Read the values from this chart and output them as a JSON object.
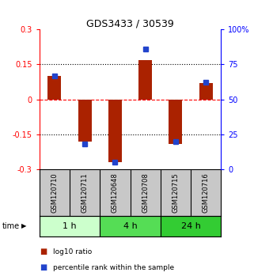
{
  "title": "GDS3433 / 30539",
  "samples": [
    "GSM120710",
    "GSM120711",
    "GSM120648",
    "GSM120708",
    "GSM120715",
    "GSM120716"
  ],
  "groups": [
    {
      "label": "1 h",
      "indices": [
        0,
        1
      ],
      "color": "#ccffcc"
    },
    {
      "label": "4 h",
      "indices": [
        2,
        3
      ],
      "color": "#55dd55"
    },
    {
      "label": "24 h",
      "indices": [
        4,
        5
      ],
      "color": "#33cc33"
    }
  ],
  "log10_ratio": [
    0.1,
    -0.18,
    -0.27,
    0.17,
    -0.19,
    0.07
  ],
  "percentile_rank": [
    67,
    18,
    5,
    86,
    20,
    62
  ],
  "ylim_left": [
    -0.3,
    0.3
  ],
  "ylim_right": [
    0,
    100
  ],
  "yticks_left": [
    -0.3,
    -0.15,
    0,
    0.15,
    0.3
  ],
  "yticks_right": [
    0,
    25,
    50,
    75,
    100
  ],
  "ytick_labels_left": [
    "-0.3",
    "-0.15",
    "0",
    "0.15",
    "0.3"
  ],
  "ytick_labels_right": [
    "0",
    "25",
    "50",
    "75",
    "100%"
  ],
  "hlines_dotted": [
    -0.15,
    0.15
  ],
  "hline_dashed": 0,
  "bar_color": "#aa2200",
  "dot_color": "#2244cc",
  "label_bg": "#c8c8c8",
  "bar_width": 0.45,
  "dot_size": 28
}
